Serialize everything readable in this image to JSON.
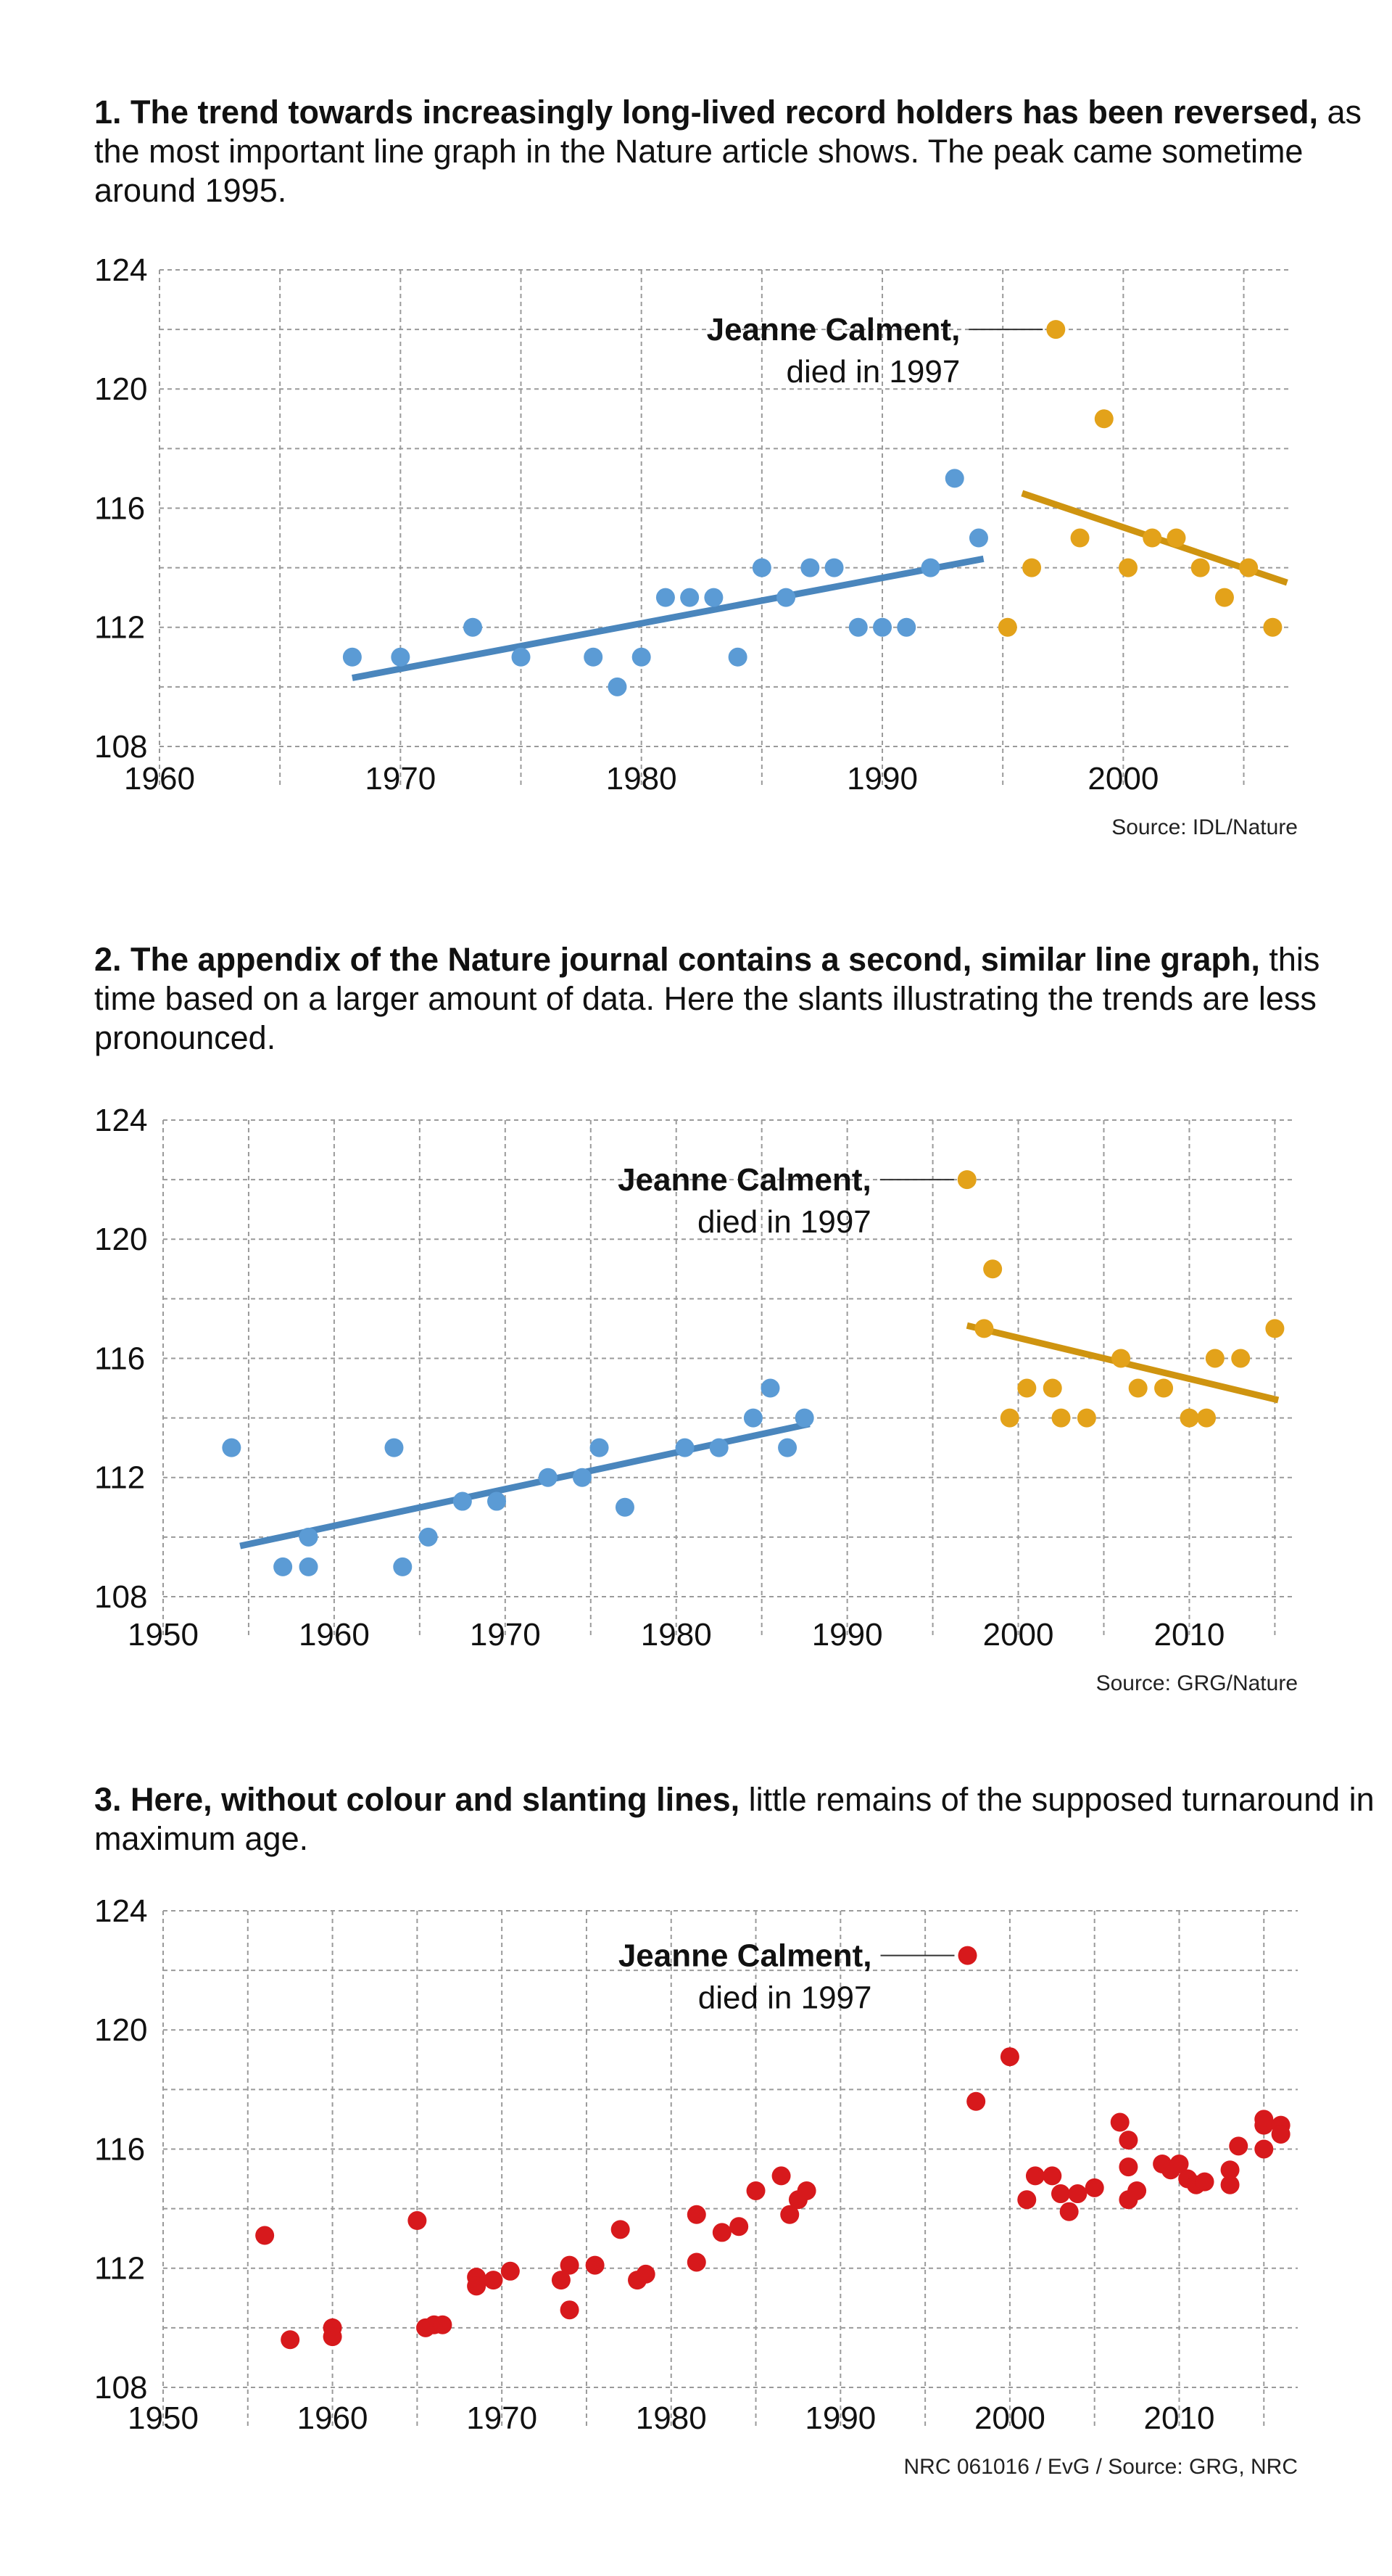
{
  "sections": [
    {
      "heading_bold": "1. The trend towards increasingly long-lived record holders has been reversed,",
      "heading_rest": " as the most important line graph in the Nature article shows. The peak came sometime around 1995."
    },
    {
      "heading_bold": "2. The appendix of the Nature journal contains a second, similar line graph,",
      "heading_rest": " this time based on a larger amount of data. Here the slants illustrating the trends are less pronounced."
    },
    {
      "heading_bold": "3. Here, without colour and slanting lines,",
      "heading_rest": " little remains of the supposed turnaround in maximum age."
    }
  ],
  "colors": {
    "blue": "#5b9bd5",
    "blue_line": "#4a86bd",
    "gold": "#e3a21a",
    "gold_line": "#cf9410",
    "red": "#d7191c",
    "grid": "#9a9a9a"
  },
  "chart_data": [
    {
      "type": "scatter",
      "xlim": [
        1960,
        2007
      ],
      "ylim": [
        107,
        124
      ],
      "x_ticks": [
        1960,
        1970,
        1980,
        1990,
        2000
      ],
      "y_ticks": [
        108,
        112,
        116,
        120,
        124
      ],
      "grid": true,
      "annotation": {
        "name": "Jeanne Calment,",
        "text": "died in 1997",
        "x": 1997.2,
        "y": 122
      },
      "source": "Source: IDL/Nature",
      "series": [
        {
          "color": "blue",
          "points": [
            [
              1968,
              111
            ],
            [
              1970,
              111
            ],
            [
              1973,
              112
            ],
            [
              1975,
              111
            ],
            [
              1978,
              111
            ],
            [
              1979,
              110
            ],
            [
              1980,
              111
            ],
            [
              1981,
              113
            ],
            [
              1982,
              113
            ],
            [
              1983,
              113
            ],
            [
              1984,
              111
            ],
            [
              1985,
              114
            ],
            [
              1986,
              113
            ],
            [
              1987,
              114
            ],
            [
              1988,
              114
            ],
            [
              1989,
              112
            ],
            [
              1990,
              112
            ],
            [
              1991,
              112
            ],
            [
              1992,
              114
            ],
            [
              1993,
              117
            ],
            [
              1994,
              115
            ]
          ],
          "trend": [
            [
              1968,
              110.3
            ],
            [
              1994.2,
              114.3
            ]
          ]
        },
        {
          "color": "gold",
          "points": [
            [
              1995.2,
              112
            ],
            [
              1996.2,
              114
            ],
            [
              1997.2,
              122
            ],
            [
              1998.2,
              115
            ],
            [
              1999.2,
              119
            ],
            [
              2000.2,
              114
            ],
            [
              2001.2,
              115
            ],
            [
              2002.2,
              115
            ],
            [
              2003.2,
              114
            ],
            [
              2004.2,
              113
            ],
            [
              2005.2,
              114
            ],
            [
              2006.2,
              112
            ]
          ],
          "trend": [
            [
              1995.8,
              116.5
            ],
            [
              2006.8,
              113.5
            ]
          ]
        }
      ]
    },
    {
      "type": "scatter",
      "xlim": [
        1950,
        2016
      ],
      "ylim": [
        107,
        124
      ],
      "x_ticks": [
        1950,
        1960,
        1970,
        1980,
        1990,
        2000,
        2010
      ],
      "y_ticks": [
        108,
        112,
        116,
        120,
        124
      ],
      "grid": true,
      "annotation": {
        "name": "Jeanne Calment,",
        "text": "died in 1997",
        "x": 1997,
        "y": 122
      },
      "source": "Source: GRG/Nature",
      "series": [
        {
          "color": "blue",
          "points": [
            [
              1954,
              113
            ],
            [
              1957,
              109
            ],
            [
              1958.5,
              110
            ],
            [
              1958.5,
              109
            ],
            [
              1963.5,
              113
            ],
            [
              1964,
              109
            ],
            [
              1965.5,
              110
            ],
            [
              1967.5,
              111.2
            ],
            [
              1969.5,
              111.2
            ],
            [
              1972.5,
              112
            ],
            [
              1974.5,
              112
            ],
            [
              1975.5,
              113
            ],
            [
              1977,
              111
            ],
            [
              1980.5,
              113
            ],
            [
              1982.5,
              113
            ],
            [
              1984.5,
              114
            ],
            [
              1985.5,
              115
            ],
            [
              1986.5,
              113
            ],
            [
              1987.5,
              114
            ]
          ],
          "trend": [
            [
              1954.5,
              109.7
            ],
            [
              1987.8,
              113.8
            ]
          ]
        },
        {
          "color": "gold",
          "points": [
            [
              1997,
              122
            ],
            [
              1998,
              117
            ],
            [
              1998.5,
              119
            ],
            [
              1999.5,
              114
            ],
            [
              2000.5,
              115
            ],
            [
              2002,
              115
            ],
            [
              2002.5,
              114
            ],
            [
              2004,
              114
            ],
            [
              2006,
              116
            ],
            [
              2007,
              115
            ],
            [
              2008.5,
              115
            ],
            [
              2010,
              114
            ],
            [
              2011,
              114
            ],
            [
              2011.5,
              116
            ],
            [
              2013,
              116
            ],
            [
              2015,
              117
            ]
          ],
          "trend": [
            [
              1997,
              117.1
            ],
            [
              2015.2,
              114.6
            ]
          ]
        }
      ]
    },
    {
      "type": "scatter",
      "xlim": [
        1950,
        2017
      ],
      "ylim": [
        107,
        124
      ],
      "x_ticks": [
        1950,
        1960,
        1970,
        1980,
        1990,
        2000,
        2010
      ],
      "y_ticks": [
        108,
        112,
        116,
        120,
        124
      ],
      "grid": true,
      "annotation": {
        "name": "Jeanne Calment,",
        "text": "died in 1997",
        "x": 1997.5,
        "y": 122.5
      },
      "source": "NRC 061016 / EvG / Source: GRG, NRC",
      "series": [
        {
          "color": "red",
          "points": [
            [
              1956,
              113.1
            ],
            [
              1957.5,
              109.6
            ],
            [
              1960,
              110
            ],
            [
              1960,
              109.7
            ],
            [
              1965,
              113.6
            ],
            [
              1965.5,
              110
            ],
            [
              1966,
              110.1
            ],
            [
              1966.5,
              110.1
            ],
            [
              1968.5,
              111.7
            ],
            [
              1968.5,
              111.4
            ],
            [
              1969.5,
              111.6
            ],
            [
              1970.5,
              111.9
            ],
            [
              1973.5,
              111.6
            ],
            [
              1974,
              112.1
            ],
            [
              1974,
              110.6
            ],
            [
              1975.5,
              112.1
            ],
            [
              1977,
              113.3
            ],
            [
              1978,
              111.6
            ],
            [
              1978.5,
              111.8
            ],
            [
              1981.5,
              113.8
            ],
            [
              1981.5,
              112.2
            ],
            [
              1983,
              113.2
            ],
            [
              1984,
              113.4
            ],
            [
              1985,
              114.6
            ],
            [
              1986.5,
              115.1
            ],
            [
              1987,
              113.8
            ],
            [
              1987.5,
              114.3
            ],
            [
              1988,
              114.6
            ],
            [
              1997.5,
              122.5
            ],
            [
              1998,
              117.6
            ],
            [
              2000,
              119.1
            ],
            [
              2001,
              114.3
            ],
            [
              2001.5,
              115.1
            ],
            [
              2002.5,
              115.1
            ],
            [
              2003,
              114.5
            ],
            [
              2003.5,
              113.9
            ],
            [
              2004,
              114.5
            ],
            [
              2005,
              114.7
            ],
            [
              2006.5,
              116.9
            ],
            [
              2007,
              116.3
            ],
            [
              2007,
              115.4
            ],
            [
              2007,
              114.3
            ],
            [
              2007.5,
              114.6
            ],
            [
              2009,
              115.5
            ],
            [
              2009.5,
              115.3
            ],
            [
              2010,
              115.5
            ],
            [
              2010.5,
              115
            ],
            [
              2011,
              114.8
            ],
            [
              2011.5,
              114.9
            ],
            [
              2013,
              115.3
            ],
            [
              2013,
              114.8
            ],
            [
              2013.5,
              116.1
            ],
            [
              2015,
              117
            ],
            [
              2015,
              116.8
            ],
            [
              2015,
              116
            ],
            [
              2016,
              116.8
            ],
            [
              2016,
              116.5
            ]
          ]
        }
      ]
    }
  ]
}
